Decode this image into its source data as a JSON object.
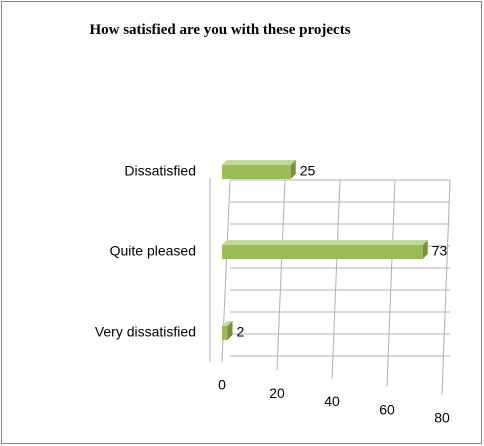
{
  "chart_data": {
    "type": "bar",
    "orientation": "horizontal",
    "title": "How satisfied are you with these projects",
    "categories": [
      "Dissatisfied",
      "Quite pleased",
      "Very dissatisfied"
    ],
    "values": [
      25,
      73,
      2
    ],
    "color": "#9bbb59",
    "xlim": [
      0,
      80
    ],
    "xticks": [
      0,
      20,
      40,
      60,
      80
    ],
    "grid": true
  }
}
